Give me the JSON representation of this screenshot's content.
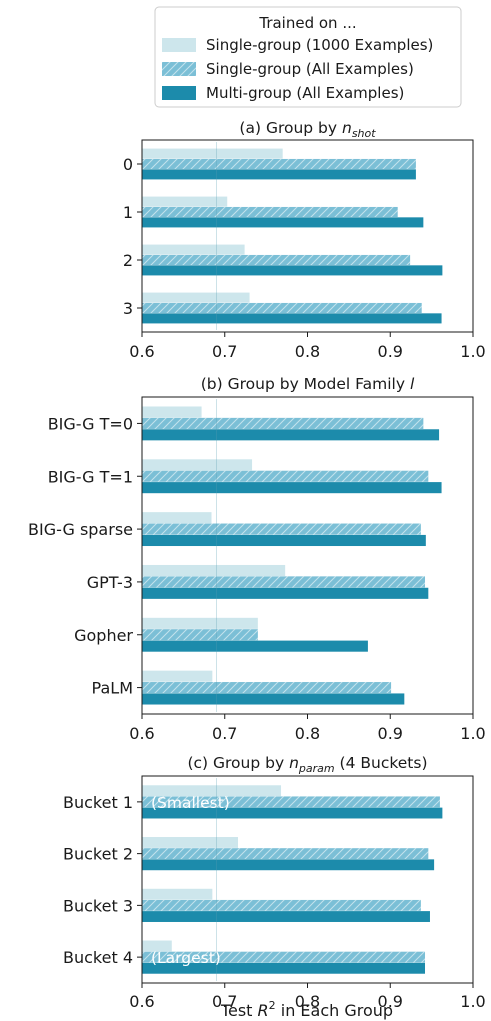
{
  "legend": {
    "title": "Trained on ...",
    "placement": "top-center",
    "entries": [
      {
        "label": "Single-group (1000 Examples)",
        "color": "#cde6ec",
        "hatch": false
      },
      {
        "label": "Single-group (All Examples)",
        "color": "#7bbfd6",
        "hatch": true
      },
      {
        "label": "Multi-group (All Examples)",
        "color": "#1c8bab",
        "hatch": false
      }
    ]
  },
  "xlabel": "Test R² in Each Group",
  "chart_data": [
    {
      "type": "bar",
      "orientation": "horizontal",
      "title": "(a) Group by n_shot",
      "title_prefix": "(a) Group by ",
      "title_var": "n",
      "title_sub": "shot",
      "title_suffix": "",
      "categories": [
        "0",
        "1",
        "2",
        "3"
      ],
      "series": [
        {
          "name": "Single-group (1000 Examples)",
          "values": [
            0.77,
            0.703,
            0.724,
            0.73
          ]
        },
        {
          "name": "Single-group (All Examples)",
          "values": [
            0.931,
            0.909,
            0.924,
            0.938
          ]
        },
        {
          "name": "Multi-group (All Examples)",
          "values": [
            0.931,
            0.94,
            0.963,
            0.962
          ]
        }
      ],
      "xlim": [
        0.6,
        1.0
      ],
      "xticks": [
        "0.6",
        "0.7",
        "0.8",
        "0.9",
        "1.0"
      ],
      "grid": false
    },
    {
      "type": "bar",
      "orientation": "horizontal",
      "title": "(b) Group by Model Family l",
      "title_prefix": "(b) Group by Model Family ",
      "title_var": "l",
      "title_sub": "",
      "title_suffix": "",
      "categories": [
        "BIG-G T=0",
        "BIG-G T=1",
        "BIG-G sparse",
        "GPT-3",
        "Gopher",
        "PaLM"
      ],
      "series": [
        {
          "name": "Single-group (1000 Examples)",
          "values": [
            0.672,
            0.733,
            0.684,
            0.773,
            0.74,
            0.685
          ]
        },
        {
          "name": "Single-group (All Examples)",
          "values": [
            0.94,
            0.946,
            0.937,
            0.942,
            0.74,
            0.901
          ]
        },
        {
          "name": "Multi-group (All Examples)",
          "values": [
            0.959,
            0.962,
            0.943,
            0.946,
            0.873,
            0.917
          ]
        }
      ],
      "xlim": [
        0.6,
        1.0
      ],
      "xticks": [
        "0.6",
        "0.7",
        "0.8",
        "0.9",
        "1.0"
      ],
      "grid": false
    },
    {
      "type": "bar",
      "orientation": "horizontal",
      "title": "(c) Group by n_param (4 Buckets)",
      "title_prefix": "(c) Group by ",
      "title_var": "n",
      "title_sub": "param",
      "title_suffix": " (4 Buckets)",
      "categories": [
        "Bucket 1",
        "Bucket 2",
        "Bucket 3",
        "Bucket 4"
      ],
      "series": [
        {
          "name": "Single-group (1000 Examples)",
          "values": [
            0.768,
            0.716,
            0.685,
            0.636
          ]
        },
        {
          "name": "Single-group (All Examples)",
          "values": [
            0.96,
            0.946,
            0.937,
            0.942
          ]
        },
        {
          "name": "Multi-group (All Examples)",
          "values": [
            0.963,
            0.953,
            0.948,
            0.942
          ]
        }
      ],
      "annotations": [
        {
          "category": "Bucket 1",
          "text": "(Smallest)"
        },
        {
          "category": "Bucket 4",
          "text": "(Largest)"
        }
      ],
      "xlim": [
        0.6,
        1.0
      ],
      "xticks": [
        "0.6",
        "0.7",
        "0.8",
        "0.9",
        "1.0"
      ],
      "grid": false
    }
  ]
}
